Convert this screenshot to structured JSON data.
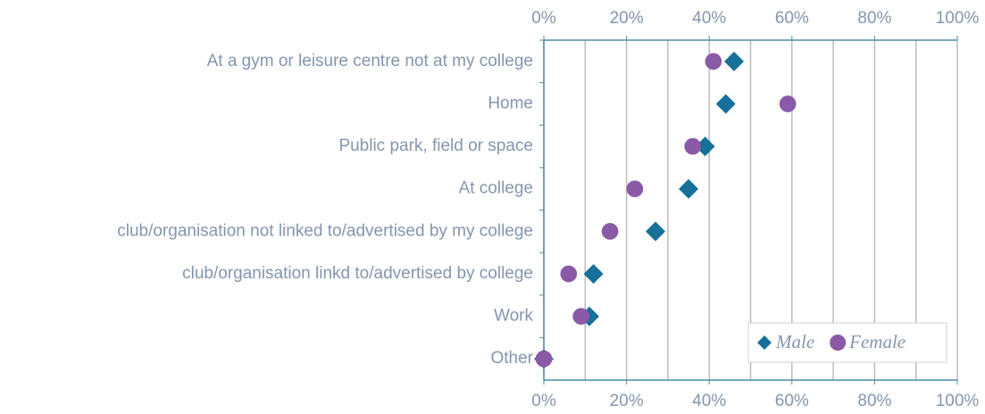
{
  "chart_data": {
    "type": "dot",
    "categories": [
      "At a gym or leisure centre not at my college",
      "Home",
      "Public park, field or space",
      "At college",
      "club/organisation not linked to/advertised by my college",
      "club/organisation linkd to/advertised by college",
      "Work",
      "Other"
    ],
    "series": [
      {
        "name": "Male",
        "color": "#17709a",
        "marker": "diamond",
        "values": [
          46,
          44,
          39,
          35,
          27,
          12,
          11,
          0
        ]
      },
      {
        "name": "Female",
        "color": "#8a5aa6",
        "marker": "circle",
        "values": [
          41,
          59,
          36,
          22,
          16,
          6,
          9,
          0
        ]
      }
    ],
    "xlim": [
      0,
      100
    ],
    "xticks": [
      {
        "value": 0,
        "label": "0%"
      },
      {
        "value": 20,
        "label": "20%"
      },
      {
        "value": 40,
        "label": "40%"
      },
      {
        "value": 60,
        "label": "60%"
      },
      {
        "value": 80,
        "label": "80%"
      },
      {
        "value": 100,
        "label": "100%"
      }
    ],
    "minor_xticks": [
      10,
      30,
      50,
      70,
      90
    ],
    "grid": true,
    "legend": "lower right"
  }
}
